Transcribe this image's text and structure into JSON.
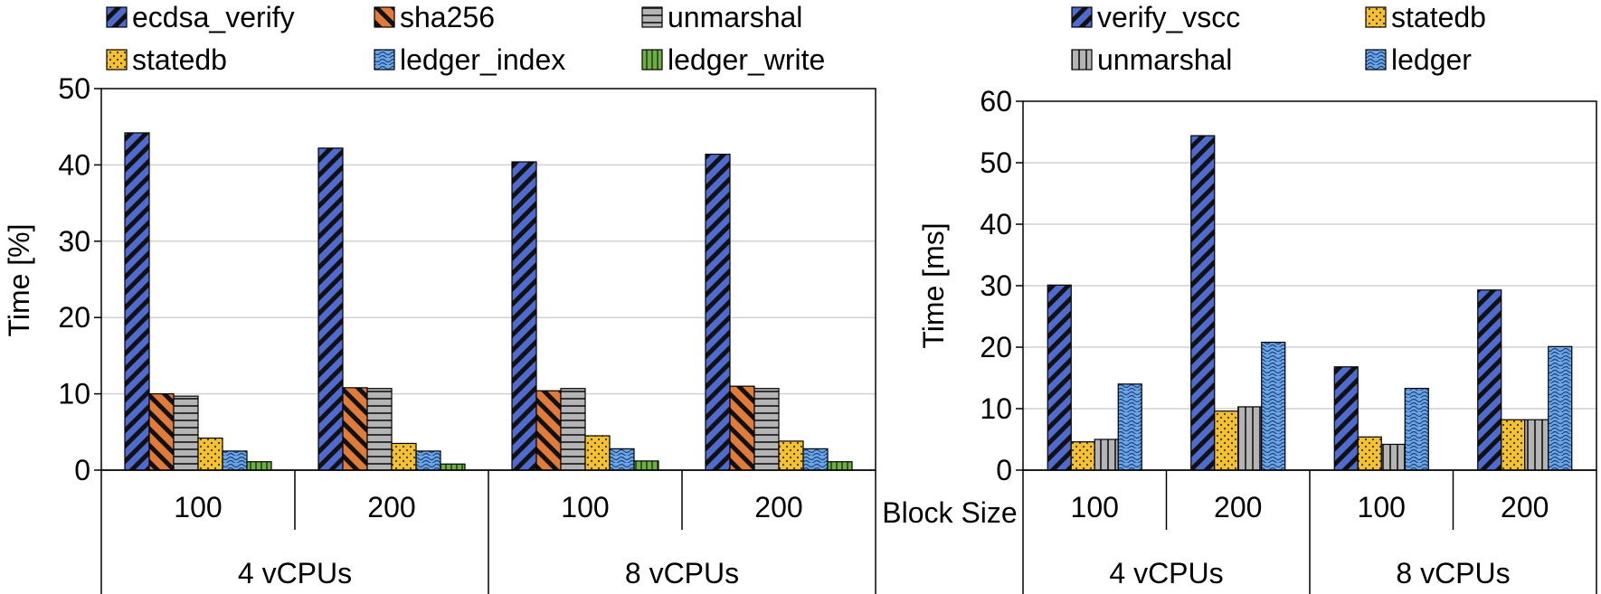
{
  "chart_data": [
    {
      "type": "bar",
      "title": "",
      "ylabel": "Time [%]",
      "xlabel": "",
      "ylim": [
        0,
        50
      ],
      "yticks": [
        0,
        10,
        20,
        30,
        40,
        50
      ],
      "grid": true,
      "legend_position": "top",
      "categories": [
        "100",
        "200",
        "100",
        "200"
      ],
      "groups": [
        {
          "label": "4 vCPUs",
          "categories": [
            "100",
            "200"
          ]
        },
        {
          "label": "8 vCPUs",
          "categories": [
            "100",
            "200"
          ]
        }
      ],
      "series": [
        {
          "name": "ecdsa_verify",
          "pattern": "diag-dense",
          "color": "#4f6bd0",
          "values": [
            44.2,
            42.2,
            40.4,
            41.4
          ]
        },
        {
          "name": "sha256",
          "pattern": "diag-wide",
          "color": "#e07b39",
          "values": [
            10.0,
            10.8,
            10.4,
            11.0
          ]
        },
        {
          "name": "unmarshal",
          "pattern": "horizontal",
          "color": "#b4b4b4",
          "values": [
            9.7,
            10.7,
            10.7,
            10.7
          ]
        },
        {
          "name": "statedb",
          "pattern": "dots",
          "color": "#f5c12e",
          "values": [
            4.2,
            3.5,
            4.5,
            3.8
          ]
        },
        {
          "name": "ledger_index",
          "pattern": "wave",
          "color": "#6aa6e6",
          "values": [
            2.5,
            2.5,
            2.8,
            2.8
          ]
        },
        {
          "name": "ledger_write",
          "pattern": "vertical",
          "color": "#70ad47",
          "values": [
            1.1,
            0.8,
            1.2,
            1.1
          ]
        }
      ]
    },
    {
      "type": "bar",
      "title": "",
      "ylabel": "Time [ms]",
      "xlabel": "Block Size",
      "ylim": [
        0,
        60
      ],
      "yticks": [
        0,
        10,
        20,
        30,
        40,
        50,
        60
      ],
      "grid": true,
      "legend_position": "top",
      "categories": [
        "100",
        "200",
        "100",
        "200"
      ],
      "groups": [
        {
          "label": "4 vCPUs",
          "categories": [
            "100",
            "200"
          ]
        },
        {
          "label": "8 vCPUs",
          "categories": [
            "100",
            "200"
          ]
        }
      ],
      "series": [
        {
          "name": "verify_vscc",
          "pattern": "diag-dense",
          "color": "#4f6bd0",
          "values": [
            30.1,
            54.4,
            16.8,
            29.3
          ]
        },
        {
          "name": "statedb",
          "pattern": "dots",
          "color": "#f5c12e",
          "values": [
            4.6,
            9.6,
            5.4,
            8.2
          ]
        },
        {
          "name": "unmarshal",
          "pattern": "vertical-gray",
          "color": "#b4b4b4",
          "values": [
            5.0,
            10.3,
            4.2,
            8.2
          ]
        },
        {
          "name": "ledger",
          "pattern": "wave",
          "color": "#6aa6e6",
          "values": [
            14.0,
            20.8,
            13.3,
            20.1
          ]
        }
      ]
    }
  ]
}
